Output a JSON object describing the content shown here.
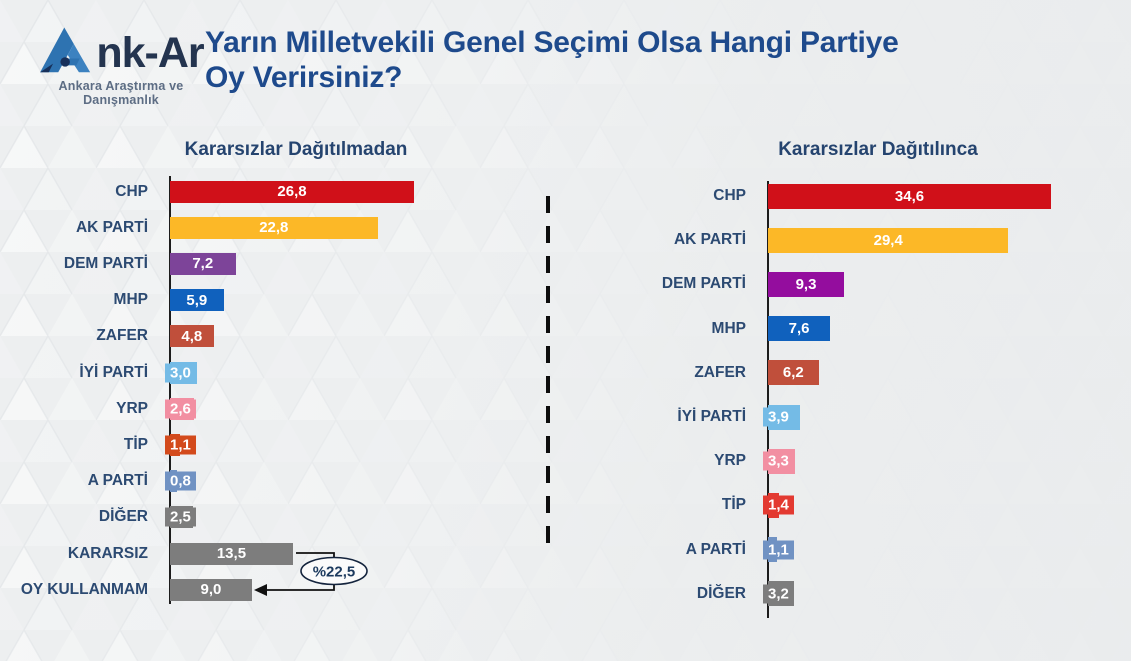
{
  "brand": {
    "name": "Ank-Ar",
    "name_rest": "nk-Ar",
    "tagline": "Ankara Araştırma ve Danışmanlık"
  },
  "title": {
    "line1": "Yarın Milletvekili Genel Seçimi Olsa Hangi Partiye",
    "line2": "Oy Verirsiniz?"
  },
  "colors": {
    "title_navy": "#1e4a8c",
    "header_navy": "#25446f",
    "label_navy": "#2c4a72",
    "axis_black": "#1c1c1c",
    "background": "#edeff0"
  },
  "chart_data": [
    {
      "type": "bar",
      "orientation": "horizontal",
      "title": "Kararsızlar Dağıtılmadan",
      "categories": [
        "CHP",
        "AK PARTİ",
        "DEM PARTİ",
        "MHP",
        "ZAFER",
        "İYİ PARTİ",
        "YRP",
        "TİP",
        "A PARTİ",
        "DİĞER",
        "KARARSIZ",
        "OY KULLANMAM"
      ],
      "values": [
        26.8,
        22.8,
        7.2,
        5.9,
        4.8,
        3.0,
        2.6,
        1.1,
        0.8,
        2.5,
        13.5,
        9.0
      ],
      "value_labels": [
        "26,8",
        "22,8",
        "7,2",
        "5,9",
        "4,8",
        "3,0",
        "2,6",
        "1,1",
        "0,8",
        "2,5",
        "13,5",
        "9,0"
      ],
      "bar_colors": [
        "#d01019",
        "#fcb827",
        "#7d4499",
        "#1061bd",
        "#c04f3b",
        "#74bbe6",
        "#f28fa2",
        "#d34a1c",
        "#7092c3",
        "#7d7d7d",
        "#7d7d7d",
        "#7d7d7d"
      ],
      "xlim": [
        0,
        27
      ],
      "grid": false,
      "legend": false,
      "annotation": {
        "label": "%22,5",
        "from_category": "KARARSIZ",
        "to_category": "OY KULLANMAM",
        "meaning": "13,5 + 9,0"
      }
    },
    {
      "type": "bar",
      "orientation": "horizontal",
      "title": "Kararsızlar Dağıtılınca",
      "categories": [
        "CHP",
        "AK PARTİ",
        "DEM PARTİ",
        "MHP",
        "ZAFER",
        "İYİ PARTİ",
        "YRP",
        "TİP",
        "A PARTİ",
        "DİĞER"
      ],
      "values": [
        34.6,
        29.4,
        9.3,
        7.6,
        6.2,
        3.9,
        3.3,
        1.4,
        1.1,
        3.2
      ],
      "value_labels": [
        "34,6",
        "29,4",
        "9,3",
        "7,6",
        "6,2",
        "3,9",
        "3,3",
        "1,4",
        "1,1",
        "3,2"
      ],
      "bar_colors": [
        "#d01019",
        "#fcb827",
        "#940d9e",
        "#1061bd",
        "#c04f3b",
        "#74bbe6",
        "#f28fa2",
        "#e33a31",
        "#7092c3",
        "#7d7d7d"
      ],
      "xlim": [
        0,
        35
      ],
      "grid": false,
      "legend": false
    }
  ]
}
